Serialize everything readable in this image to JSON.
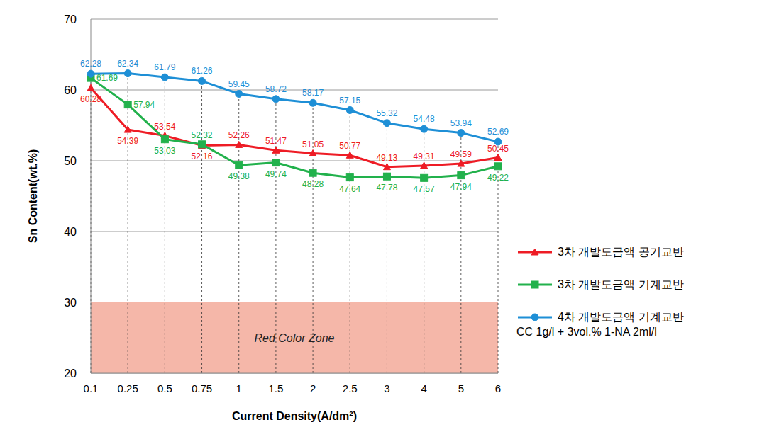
{
  "chart_data": {
    "type": "line",
    "x_label": "Current Density(A/dm²)",
    "y_label": "Sn Content(wt.%)",
    "categories": [
      "0.1",
      "0.25",
      "0.5",
      "0.75",
      "1",
      "1.5",
      "2",
      "2.5",
      "3",
      "4",
      "5",
      "6"
    ],
    "series": [
      {
        "name": "3차 개발도금액 공기교반",
        "color": "#ee1c25",
        "marker": "triangle",
        "values": [
          60.28,
          54.39,
          53.54,
          52.16,
          52.26,
          51.47,
          51.05,
          50.77,
          49.13,
          49.31,
          49.59,
          50.45
        ]
      },
      {
        "name": "3차 개발도금액 기계교반",
        "color": "#22b14c",
        "marker": "square",
        "values": [
          61.69,
          57.94,
          53.03,
          52.32,
          49.38,
          49.74,
          48.28,
          47.64,
          47.78,
          47.57,
          47.94,
          49.22
        ]
      },
      {
        "name": "4차 개발도금액 기계교반",
        "color": "#1e8fd6",
        "marker": "circle",
        "values": [
          62.28,
          62.34,
          61.79,
          61.26,
          59.45,
          58.72,
          58.17,
          57.15,
          55.32,
          54.48,
          53.94,
          52.69
        ]
      }
    ],
    "ylim": [
      20,
      70
    ],
    "yticks": [
      20,
      30,
      40,
      50,
      60,
      70
    ],
    "grid": true,
    "data_labels": true,
    "legend": "right",
    "annotations": [
      {
        "text": "Red Color Zone",
        "y_range": [
          20,
          30
        ],
        "color": "#f5b7a9"
      },
      {
        "text": "CC 1g/l + 3vol.% 1-NA 2ml/l"
      }
    ]
  }
}
